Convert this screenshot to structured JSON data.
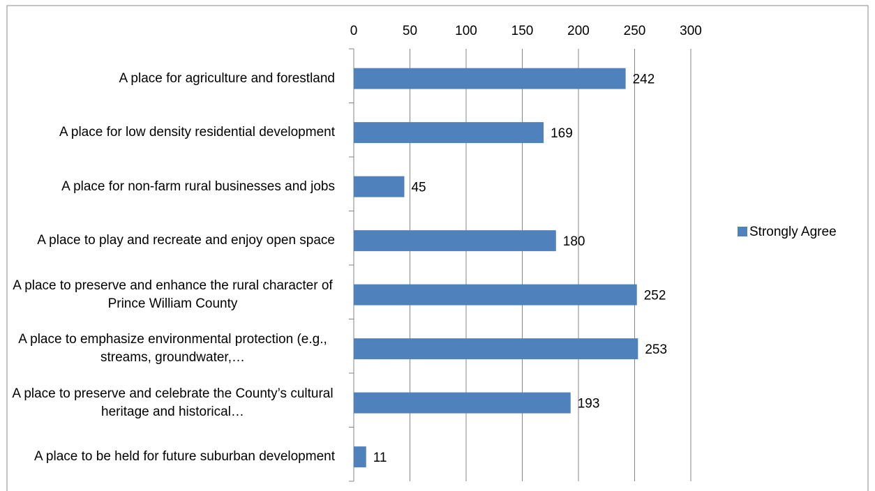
{
  "chart_data": {
    "type": "bar",
    "orientation": "horizontal",
    "categories": [
      "A place for agriculture and forestland",
      "A place for low density residential development",
      "A place for non-farm rural businesses and jobs",
      "A place to play and recreate and enjoy open space",
      "A place to preserve and enhance the rural character of Prince William County",
      "A place to emphasize environmental protection (e.g., streams, groundwater,…",
      "A place to preserve and celebrate the County’s cultural heritage and historical…",
      "A place to be held for future suburban development"
    ],
    "series": [
      {
        "name": "Strongly Agree",
        "color": "#4f81bd",
        "values": [
          242,
          169,
          45,
          180,
          252,
          253,
          193,
          11
        ]
      }
    ],
    "xlim": [
      0,
      300
    ],
    "xticks": [
      0,
      50,
      100,
      150,
      200,
      250,
      300
    ],
    "grid": true,
    "legend": "right",
    "data_labels": true
  }
}
